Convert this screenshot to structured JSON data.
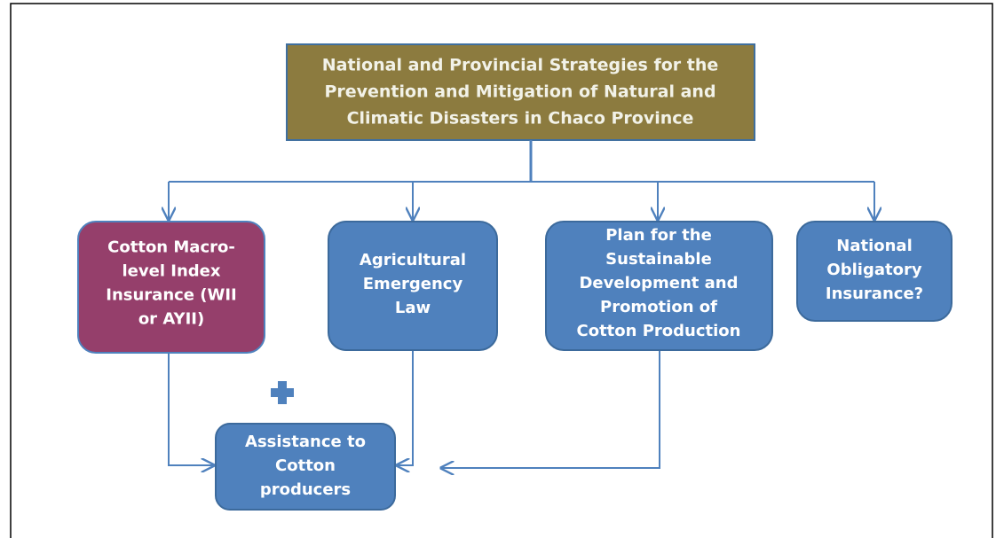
{
  "title_box": {
    "lines": [
      "National and Provincial Strategies for the",
      "Prevention and Mitigation of Natural and",
      "Climatic Disasters in Chaco Province"
    ]
  },
  "nodes": [
    {
      "lines": [
        "Cotton Macro-",
        "level Index",
        "Insurance (WII",
        "or AYII)"
      ]
    },
    {
      "lines": [
        "Agricultural",
        "Emergency",
        "Law"
      ]
    },
    {
      "lines": [
        "Plan for the",
        "Sustainable",
        "Development and",
        "Promotion of",
        "Cotton Production"
      ]
    },
    {
      "lines": [
        "National",
        "Obligatory",
        "Insurance?"
      ]
    }
  ],
  "result": {
    "lines": [
      "Assistance to",
      "Cotton",
      "producers"
    ]
  }
}
